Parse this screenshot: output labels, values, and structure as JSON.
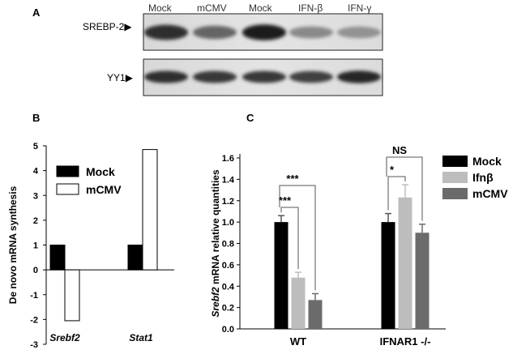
{
  "panelA": {
    "label": "A",
    "lanes": [
      "Mock",
      "mCMV",
      "Mock",
      "IFN-β",
      "IFN-γ"
    ],
    "blot1_label": "SREBP-2",
    "blot2_label": "YY1",
    "srebp2_intensity": [
      0.85,
      0.55,
      0.95,
      0.35,
      0.3
    ],
    "yy1_intensity": [
      0.85,
      0.8,
      0.8,
      0.75,
      0.9
    ]
  },
  "panelB": {
    "label": "B",
    "ylabel": "De novo mRNA synthesis",
    "legend": [
      "Mock",
      "mCMV"
    ]
  },
  "panelC": {
    "label": "C",
    "ylabel_italic": "Srebf2",
    "ylabel_rest": " mRNA relative quantities",
    "legend": [
      "Mock",
      "Ifnβ",
      "mCMV"
    ],
    "sig_wt_1": "***",
    "sig_wt_2": "***",
    "sig_ko_1": "*",
    "sig_ko_2": "NS"
  },
  "colors": {
    "mock": "#000000",
    "mcmv_b": "#ffffff",
    "ifnb": "#bdbdbd",
    "mcmv_c": "#6b6b6b"
  },
  "chart_data": [
    {
      "type": "bar",
      "categories": [
        "Srebf2",
        "Stat1"
      ],
      "series": [
        {
          "name": "Mock",
          "values": [
            1,
            1
          ]
        },
        {
          "name": "mCMV",
          "values": [
            -2.05,
            4.85
          ]
        }
      ],
      "ylabel": "De novo mRNA synthesis",
      "ylim": [
        -3,
        5
      ],
      "yticks": [
        -3,
        -2,
        -1,
        0,
        1,
        2,
        3,
        4,
        5
      ],
      "legend": "top-left"
    },
    {
      "type": "bar",
      "categories": [
        "WT",
        "IFNAR1 -/-"
      ],
      "series": [
        {
          "name": "Mock",
          "values": [
            1.0,
            1.0
          ],
          "errors": [
            0.06,
            0.08
          ]
        },
        {
          "name": "Ifnβ",
          "values": [
            0.48,
            1.23
          ],
          "errors": [
            0.05,
            0.12
          ]
        },
        {
          "name": "mCMV",
          "values": [
            0.27,
            0.9
          ],
          "errors": [
            0.06,
            0.08
          ]
        }
      ],
      "ylim": [
        0,
        1.6
      ],
      "yticks": [
        "0.0",
        "0.2",
        "0.4",
        "0.6",
        "0.8",
        "1.0",
        "1.2",
        "1.4",
        "1.6"
      ],
      "legend": "top-right"
    }
  ]
}
